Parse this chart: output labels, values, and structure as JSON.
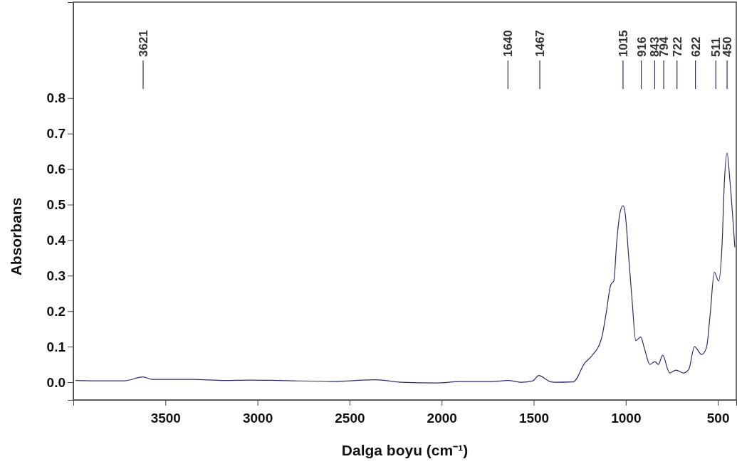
{
  "chart_data": {
    "type": "line",
    "xlabel": "Dalga boyu (cm⁻¹)",
    "ylabel": "Absorbans",
    "xlim": [
      4000,
      400
    ],
    "ylim": [
      -0.05,
      1.07
    ],
    "xticks": [
      3500,
      3000,
      2500,
      2000,
      1500,
      1000,
      500
    ],
    "yticks": [
      {
        "value": 0,
        "label": "0.0"
      },
      {
        "value": 0.1,
        "label": "0.1"
      },
      {
        "value": 0.2,
        "label": "0.2"
      },
      {
        "value": 0.3,
        "label": "0.3"
      },
      {
        "value": 0.4,
        "label": "0.4"
      },
      {
        "value": 0.5,
        "label": "0.5"
      },
      {
        "value": 0.6,
        "label": "0.6"
      },
      {
        "value": 0.7,
        "label": "0.7"
      },
      {
        "value": 0.8,
        "label": "0.8"
      }
    ],
    "grid": false,
    "marker": "none",
    "line_style": "solid",
    "x": [
      3988,
      3885,
      3719,
      3623,
      3573,
      3488,
      3350,
      3181,
      3042,
      2888,
      2596,
      2358,
      2219,
      2031,
      1892,
      1719,
      1642,
      1565,
      1504,
      1473,
      1412,
      1388,
      1285,
      1223,
      1185,
      1131,
      1108,
      1081,
      1065,
      1050,
      1031,
      1015,
      1004,
      985,
      965,
      946,
      919,
      900,
      869,
      842,
      823,
      800,
      762,
      727,
      688,
      658,
      627,
      588,
      562,
      542,
      519,
      496,
      477,
      465,
      450,
      435,
      408
    ],
    "series": [
      {
        "color": "#2b2b6b",
        "values": [
          0.005,
          0.004,
          0.004,
          0.015,
          0.008,
          0.008,
          0.008,
          0.005,
          0.006,
          0.005,
          0.002,
          0.007,
          0.0,
          -0.002,
          0.002,
          0.002,
          0.005,
          0.0,
          0.004,
          0.019,
          0.002,
          0.0,
          0.001,
          0.054,
          0.074,
          0.125,
          0.19,
          0.275,
          0.285,
          0.39,
          0.478,
          0.497,
          0.478,
          0.358,
          0.225,
          0.117,
          0.127,
          0.097,
          0.05,
          0.058,
          0.05,
          0.076,
          0.026,
          0.034,
          0.026,
          0.036,
          0.1,
          0.078,
          0.097,
          0.19,
          0.31,
          0.285,
          0.39,
          0.56,
          0.645,
          0.57,
          0.38
        ]
      }
    ],
    "ref_lines": [
      {
        "axis": "x",
        "value": 3621,
        "label": "3621"
      },
      {
        "axis": "x",
        "value": 1640,
        "label": "1640"
      },
      {
        "axis": "x",
        "value": 1467,
        "label": "1467"
      },
      {
        "axis": "x",
        "value": 1015,
        "label": "1015"
      },
      {
        "axis": "x",
        "value": 916,
        "label": "916"
      },
      {
        "axis": "x",
        "value": 843,
        "label": "843"
      },
      {
        "axis": "x",
        "value": 794,
        "label": "794"
      },
      {
        "axis": "x",
        "value": 722,
        "label": "722"
      },
      {
        "axis": "x",
        "value": 622,
        "label": "622"
      },
      {
        "axis": "x",
        "value": 511,
        "label": "511"
      },
      {
        "axis": "x",
        "value": 450,
        "label": "450"
      }
    ]
  }
}
